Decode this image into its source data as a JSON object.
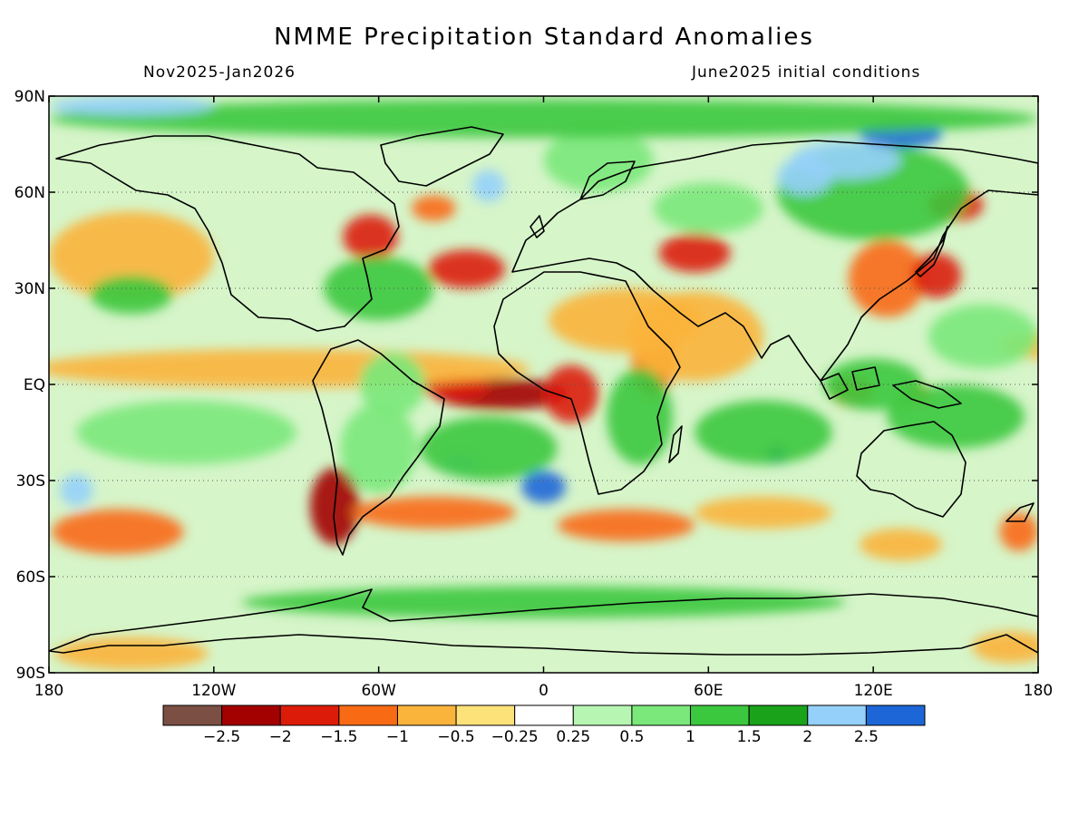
{
  "title": "NMME Precipitation Standard Anomalies",
  "subtitle_left": "Nov2025-Jan2026",
  "subtitle_right": "June2025 initial conditions",
  "map": {
    "type": "filled-contour world map",
    "projection": "equirectangular",
    "lon_range": [
      -180,
      180
    ],
    "lat_range": [
      -90,
      90
    ],
    "lat_ticks": [
      {
        "lat": 90,
        "label": "90N"
      },
      {
        "lat": 60,
        "label": "60N"
      },
      {
        "lat": 30,
        "label": "30N"
      },
      {
        "lat": 0,
        "label": "EQ"
      },
      {
        "lat": -30,
        "label": "30S"
      },
      {
        "lat": -60,
        "label": "60S"
      },
      {
        "lat": -90,
        "label": "90S"
      }
    ],
    "lon_ticks": [
      {
        "lon": -180,
        "label": "180"
      },
      {
        "lon": -120,
        "label": "120W"
      },
      {
        "lon": -60,
        "label": "60W"
      },
      {
        "lon": 0,
        "label": "0"
      },
      {
        "lon": 60,
        "label": "60E"
      },
      {
        "lon": 120,
        "label": "120E"
      },
      {
        "lon": 180,
        "label": "180"
      }
    ],
    "dotted_gridlines": [
      60,
      30,
      0,
      -30,
      -60
    ],
    "features": [
      {
        "lon": -15,
        "lat": -3,
        "rx": 24,
        "ry": 5,
        "value": -2.2
      },
      {
        "lon": -32,
        "lat": -1,
        "rx": 12,
        "ry": 4,
        "value": -1.6
      },
      {
        "lon": 10,
        "lat": -3,
        "rx": 10,
        "ry": 9,
        "value": -1.6
      },
      {
        "lon": 40,
        "lat": 8,
        "rx": 8,
        "ry": 12,
        "value": -1.5
      },
      {
        "lon": 55,
        "lat": 15,
        "rx": 25,
        "ry": 14,
        "value": -0.8
      },
      {
        "lon": 30,
        "lat": 20,
        "rx": 28,
        "ry": 10,
        "value": -0.6
      },
      {
        "lon": -28,
        "lat": 36,
        "rx": 14,
        "ry": 6,
        "value": -1.6
      },
      {
        "lon": 55,
        "lat": 41,
        "rx": 13,
        "ry": 6,
        "value": -1.6
      },
      {
        "lon": 125,
        "lat": 33,
        "rx": 14,
        "ry": 12,
        "value": -1.5
      },
      {
        "lon": 143,
        "lat": 34,
        "rx": 9,
        "ry": 7,
        "value": -1.8
      },
      {
        "lon": 150,
        "lat": 56,
        "rx": 10,
        "ry": 5,
        "value": -1.9
      },
      {
        "lon": -63,
        "lat": 46,
        "rx": 10,
        "ry": 7,
        "value": -1.9
      },
      {
        "lon": -40,
        "lat": 55,
        "rx": 8,
        "ry": 4,
        "value": -1.5
      },
      {
        "lon": -76,
        "lat": -38,
        "rx": 9,
        "ry": 12,
        "value": -2.2
      },
      {
        "lon": -155,
        "lat": -46,
        "rx": 24,
        "ry": 7,
        "value": -1.5
      },
      {
        "lon": -95,
        "lat": 5,
        "rx": 90,
        "ry": 6,
        "value": -0.6
      },
      {
        "lon": -150,
        "lat": 40,
        "rx": 30,
        "ry": 14,
        "value": -0.6
      },
      {
        "lon": -40,
        "lat": -40,
        "rx": 30,
        "ry": 5,
        "value": -1.2
      },
      {
        "lon": 30,
        "lat": -44,
        "rx": 25,
        "ry": 5,
        "value": -1.2
      },
      {
        "lon": 80,
        "lat": -40,
        "rx": 25,
        "ry": 5,
        "value": -1.0
      },
      {
        "lon": 130,
        "lat": -50,
        "rx": 15,
        "ry": 5,
        "value": -1.0
      },
      {
        "lon": 173,
        "lat": -46,
        "rx": 7,
        "ry": 6,
        "value": -1.5
      },
      {
        "lon": 180,
        "lat": 12,
        "rx": 14,
        "ry": 4,
        "value": -0.8
      },
      {
        "lon": 112,
        "lat": -2,
        "rx": 8,
        "ry": 5,
        "value": -1.4
      },
      {
        "lon": 136,
        "lat": -3,
        "rx": 5,
        "ry": 3,
        "value": -1.5
      },
      {
        "lon": -150,
        "lat": -84,
        "rx": 28,
        "ry": 5,
        "value": -0.8
      },
      {
        "lon": 170,
        "lat": -82,
        "rx": 14,
        "ry": 5,
        "value": -0.8
      },
      {
        "lon": 20,
        "lat": 70,
        "rx": 20,
        "ry": 10,
        "value": 0.8
      },
      {
        "lon": 120,
        "lat": 60,
        "rx": 35,
        "ry": 15,
        "value": 1.1
      },
      {
        "lon": 110,
        "lat": 70,
        "rx": 20,
        "ry": 6,
        "value": 2.1
      },
      {
        "lon": 130,
        "lat": 78,
        "rx": 15,
        "ry": 4,
        "value": 2.7
      },
      {
        "lon": 95,
        "lat": 65,
        "rx": 10,
        "ry": 6,
        "value": 2.1
      },
      {
        "lon": -150,
        "lat": 28,
        "rx": 15,
        "ry": 6,
        "value": 1.4
      },
      {
        "lon": -170,
        "lat": -33,
        "rx": 6,
        "ry": 5,
        "value": 2.1
      },
      {
        "lon": 0,
        "lat": -32,
        "rx": 8,
        "ry": 5,
        "value": 2.6
      },
      {
        "lon": -30,
        "lat": -25,
        "rx": 7,
        "ry": 3,
        "value": 2.1
      },
      {
        "lon": 85,
        "lat": -22,
        "rx": 4,
        "ry": 3,
        "value": 2.6
      },
      {
        "lon": -20,
        "lat": 62,
        "rx": 6,
        "ry": 5,
        "value": 2.0
      },
      {
        "lon": 35,
        "lat": -10,
        "rx": 12,
        "ry": 15,
        "value": 1.3
      },
      {
        "lon": 120,
        "lat": 0,
        "rx": 18,
        "ry": 8,
        "value": 1.3
      },
      {
        "lon": -55,
        "lat": 0,
        "rx": 12,
        "ry": 10,
        "value": 0.9
      },
      {
        "lon": -60,
        "lat": -20,
        "rx": 14,
        "ry": 14,
        "value": 0.9
      },
      {
        "lon": -20,
        "lat": -20,
        "rx": 25,
        "ry": 10,
        "value": 1.1
      },
      {
        "lon": 80,
        "lat": -15,
        "rx": 25,
        "ry": 10,
        "value": 1.0
      },
      {
        "lon": 150,
        "lat": -10,
        "rx": 25,
        "ry": 10,
        "value": 1.0
      },
      {
        "lon": 0,
        "lat": -68,
        "rx": 110,
        "ry": 5,
        "value": 1.2
      },
      {
        "lon": -60,
        "lat": 30,
        "rx": 20,
        "ry": 10,
        "value": 1.0
      },
      {
        "lon": -130,
        "lat": -15,
        "rx": 40,
        "ry": 10,
        "value": 0.8
      },
      {
        "lon": 160,
        "lat": 15,
        "rx": 20,
        "ry": 10,
        "value": 0.8
      },
      {
        "lon": 0,
        "lat": 83,
        "rx": 180,
        "ry": 6,
        "value": 1.0
      },
      {
        "lon": -150,
        "lat": 87,
        "rx": 30,
        "ry": 3,
        "value": 2.1
      },
      {
        "lon": 60,
        "lat": 55,
        "rx": 20,
        "ry": 8,
        "value": 0.9
      }
    ]
  },
  "colorbar": {
    "colors": [
      "#7b4f43",
      "#a30000",
      "#dc1c08",
      "#f96a14",
      "#fbb43b",
      "#fde27a",
      "#ffffff",
      "#b7f6b2",
      "#7ae87a",
      "#3bc83e",
      "#1aa31a",
      "#95d0fb",
      "#1c66d8"
    ],
    "labels": [
      "-2.5",
      "-2",
      "-1.5",
      "-1",
      "-0.5",
      "-0.25",
      "0.25",
      "0.5",
      "1",
      "1.5",
      "2",
      "2.5"
    ],
    "bounds": [
      -2.5,
      -2,
      -1.5,
      -1,
      -0.5,
      -0.25,
      0.25,
      0.5,
      1,
      1.5,
      2,
      2.5
    ]
  }
}
